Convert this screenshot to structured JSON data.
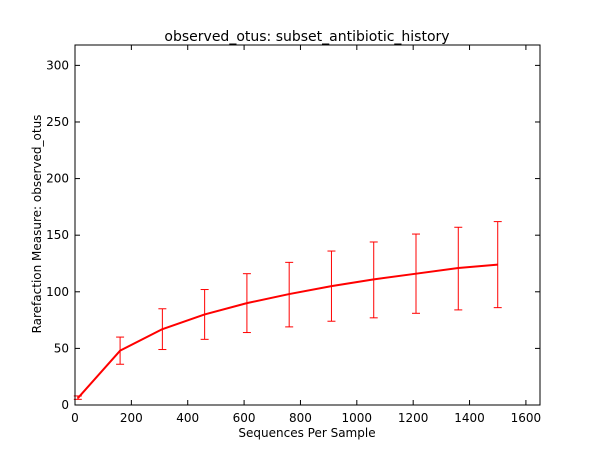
{
  "chart_data": {
    "type": "line",
    "title": "observed_otus: subset_antibiotic_history",
    "xlabel": "Sequences Per Sample",
    "ylabel": "Rarefaction Measure: observed_otus",
    "xlim": [
      0,
      1650
    ],
    "ylim": [
      0,
      318
    ],
    "xticks": [
      0,
      200,
      400,
      600,
      800,
      1000,
      1200,
      1400,
      1600
    ],
    "yticks": [
      0,
      50,
      100,
      150,
      200,
      250,
      300
    ],
    "grid": false,
    "legend": "none",
    "series": [
      {
        "color": "#ff0000",
        "x": [
          10,
          160,
          310,
          460,
          610,
          760,
          910,
          1060,
          1210,
          1360,
          1500
        ],
        "y": [
          6,
          48,
          67,
          80,
          90,
          98,
          105,
          111,
          116,
          121,
          124
        ],
        "err_low": [
          5,
          36,
          49,
          58,
          64,
          69,
          74,
          77,
          81,
          84,
          86
        ],
        "err_high": [
          8,
          60,
          85,
          102,
          116,
          126,
          136,
          144,
          151,
          157,
          162
        ]
      }
    ]
  }
}
